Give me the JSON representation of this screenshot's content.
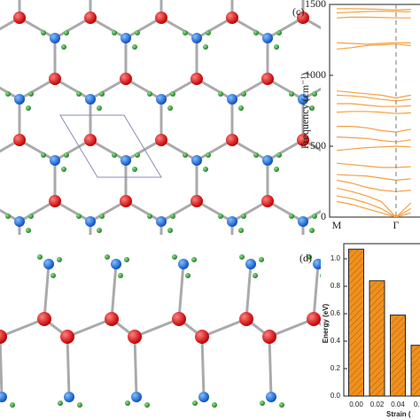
{
  "chart_data": [
    {
      "type": "line",
      "label": "(c)",
      "y_label": "Frequency (cm⁻¹)",
      "categories": [
        "M",
        null,
        null,
        null,
        "Γ",
        null
      ],
      "ylim": [
        0,
        1500
      ],
      "yticks": [
        0,
        500,
        1000,
        1500
      ],
      "color": "#f5a040",
      "series": [
        {
          "values": [
            1470,
            1470,
            1468,
            1465,
            1460,
            1465
          ]
        },
        {
          "values": [
            1440,
            1445,
            1450,
            1452,
            1450,
            1448
          ]
        },
        {
          "values": [
            1405,
            1410,
            1410,
            1408,
            1405,
            1405
          ]
        },
        {
          "values": [
            1185,
            1195,
            1210,
            1215,
            1220,
            1210
          ]
        },
        {
          "values": [
            1230,
            1225,
            1220,
            1225,
            1230,
            1228
          ]
        },
        {
          "values": [
            890,
            880,
            870,
            860,
            840,
            860
          ]
        },
        {
          "values": [
            860,
            855,
            845,
            830,
            820,
            830
          ]
        },
        {
          "values": [
            800,
            800,
            790,
            780,
            780,
            785
          ]
        },
        {
          "values": [
            740,
            745,
            745,
            740,
            730,
            735
          ]
        },
        {
          "values": [
            640,
            640,
            630,
            610,
            600,
            620
          ]
        },
        {
          "values": [
            565,
            560,
            555,
            540,
            530,
            545
          ]
        },
        {
          "values": [
            470,
            480,
            490,
            495,
            500,
            495
          ]
        },
        {
          "values": [
            380,
            370,
            360,
            350,
            350,
            355
          ]
        },
        {
          "values": [
            300,
            295,
            290,
            275,
            260,
            270
          ]
        },
        {
          "values": [
            260,
            240,
            210,
            190,
            180,
            190
          ]
        },
        {
          "values": [
            205,
            180,
            150,
            110,
            0,
            100
          ]
        },
        {
          "values": [
            150,
            130,
            100,
            60,
            0,
            60
          ]
        },
        {
          "values": [
            110,
            90,
            60,
            30,
            0,
            30
          ]
        }
      ]
    },
    {
      "type": "bar",
      "label": "(d)",
      "y_label": "Energy (eV)",
      "x_label": "Strain (",
      "categories": [
        "0.00",
        "0.02",
        "0.04",
        "0.0"
      ],
      "values": [
        1.07,
        0.84,
        0.59,
        0.37
      ],
      "color": "#f0901e",
      "ylim": [
        0,
        1.11
      ],
      "yticks": [
        {
          "value": 0,
          "label": "0.0"
        },
        {
          "value": 0.2,
          "label": "0.2"
        },
        {
          "value": 0.4,
          "label": "0.4"
        },
        {
          "value": 0.6,
          "label": "0.6"
        },
        {
          "value": 0.8,
          "label": "0.8"
        },
        {
          "value": 1.0,
          "label": "1.0"
        }
      ]
    }
  ]
}
